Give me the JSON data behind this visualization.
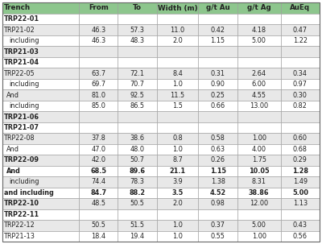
{
  "columns": [
    "Trench",
    "From",
    "To",
    "Width (m)",
    "g/t Au",
    "g/t Ag",
    "AuEq"
  ],
  "rows": [
    [
      "TRP22-01",
      "",
      "",
      "",
      "",
      "",
      ""
    ],
    [
      "TRP21-02",
      "46.3",
      "57.3",
      "11.0",
      "0.42",
      "4.18",
      "0.47"
    ],
    [
      "including",
      "46.3",
      "48.3",
      "2.0",
      "1.15",
      "5.00",
      "1.22"
    ],
    [
      "TRP21-03",
      "",
      "",
      "",
      "",
      "",
      ""
    ],
    [
      "TRP21-04",
      "",
      "",
      "",
      "",
      "",
      ""
    ],
    [
      "TRP22-05",
      "63.7",
      "72.1",
      "8.4",
      "0.31",
      "2.64",
      "0.34"
    ],
    [
      "including",
      "69.7",
      "70.7",
      "1.0",
      "0.90",
      "6.00",
      "0.97"
    ],
    [
      "And",
      "81.0",
      "92.5",
      "11.5",
      "0.25",
      "4.55",
      "0.30"
    ],
    [
      "including",
      "85.0",
      "86.5",
      "1.5",
      "0.66",
      "13.00",
      "0.82"
    ],
    [
      "TRP21-06",
      "",
      "",
      "",
      "",
      "",
      ""
    ],
    [
      "TRP21-07",
      "",
      "",
      "",
      "",
      "",
      ""
    ],
    [
      "TRP22-08",
      "37.8",
      "38.6",
      "0.8",
      "0.58",
      "1.00",
      "0.60"
    ],
    [
      "And",
      "47.0",
      "48.0",
      "1.0",
      "0.63",
      "4.00",
      "0.68"
    ],
    [
      "TRP22-09",
      "42.0",
      "50.7",
      "8.7",
      "0.26",
      "1.75",
      "0.29"
    ],
    [
      "And",
      "68.5",
      "89.6",
      "21.1",
      "1.15",
      "10.05",
      "1.28"
    ],
    [
      "including",
      "74.4",
      "78.3",
      "3.9",
      "1.38",
      "8.31",
      "1.49"
    ],
    [
      "and including",
      "84.7",
      "88.2",
      "3.5",
      "4.52",
      "38.86",
      "5.00"
    ],
    [
      "TRP22-10",
      "48.5",
      "50.5",
      "2.0",
      "0.98",
      "12.00",
      "1.13"
    ],
    [
      "TRP22-11",
      "",
      "",
      "",
      "",
      "",
      ""
    ],
    [
      "TRP22-12",
      "50.5",
      "51.5",
      "1.0",
      "0.37",
      "5.00",
      "0.43"
    ],
    [
      "TRP21-13",
      "18.4",
      "19.4",
      "1.0",
      "0.55",
      "1.00",
      "0.56"
    ]
  ],
  "header_bg": "#8dc68d",
  "row_colors": [
    "#ffffff",
    "#e8e8e8",
    "#ffffff",
    "#e8e8e8",
    "#ffffff",
    "#e8e8e8",
    "#ffffff",
    "#e8e8e8",
    "#ffffff",
    "#e8e8e8",
    "#ffffff",
    "#e8e8e8",
    "#ffffff",
    "#e8e8e8",
    "#ffffff",
    "#e8e8e8",
    "#ffffff",
    "#e8e8e8",
    "#ffffff",
    "#e8e8e8",
    "#ffffff"
  ],
  "col_widths_rel": [
    1.62,
    0.82,
    0.82,
    0.88,
    0.82,
    0.92,
    0.82
  ],
  "bold_all_cols_rows": [
    14,
    16
  ],
  "bold_col0_rows": [
    13,
    16
  ],
  "trench_rows": [
    0,
    3,
    4,
    9,
    10,
    13,
    17,
    18
  ],
  "indent_rows": [
    2,
    6,
    8,
    15
  ],
  "and_rows": [
    7,
    12,
    14
  ],
  "header_fontsize": 6.3,
  "data_fontsize": 5.9
}
